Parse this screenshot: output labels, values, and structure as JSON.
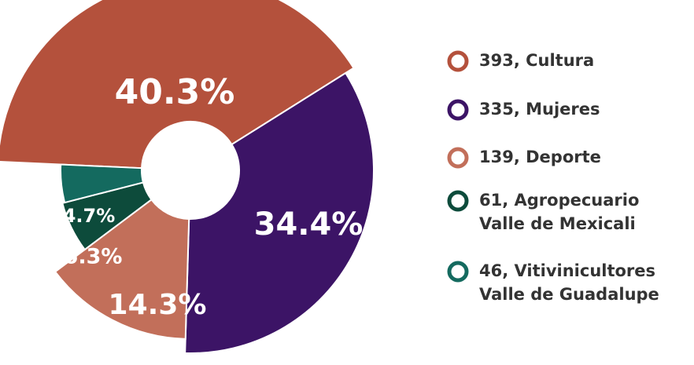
{
  "chart_data": {
    "type": "donut",
    "values": [
      393,
      335,
      139,
      61,
      46
    ],
    "value_labels": [
      "40.3%",
      "34.4%",
      "14.3%",
      "6.3%",
      "4.7%"
    ],
    "legend_labels": [
      [
        "393, Cultura"
      ],
      [
        "335, Mujeres"
      ],
      [
        "139, Deporte"
      ],
      [
        "61, Agropecuario",
        "Valle de Mexicali"
      ],
      [
        "46, Vitivinicultores",
        "Valle de Guadalupe"
      ]
    ],
    "colors": [
      "#b4513c",
      "#3c1466",
      "#c26f5a",
      "#0d4b3b",
      "#146a5f"
    ]
  }
}
